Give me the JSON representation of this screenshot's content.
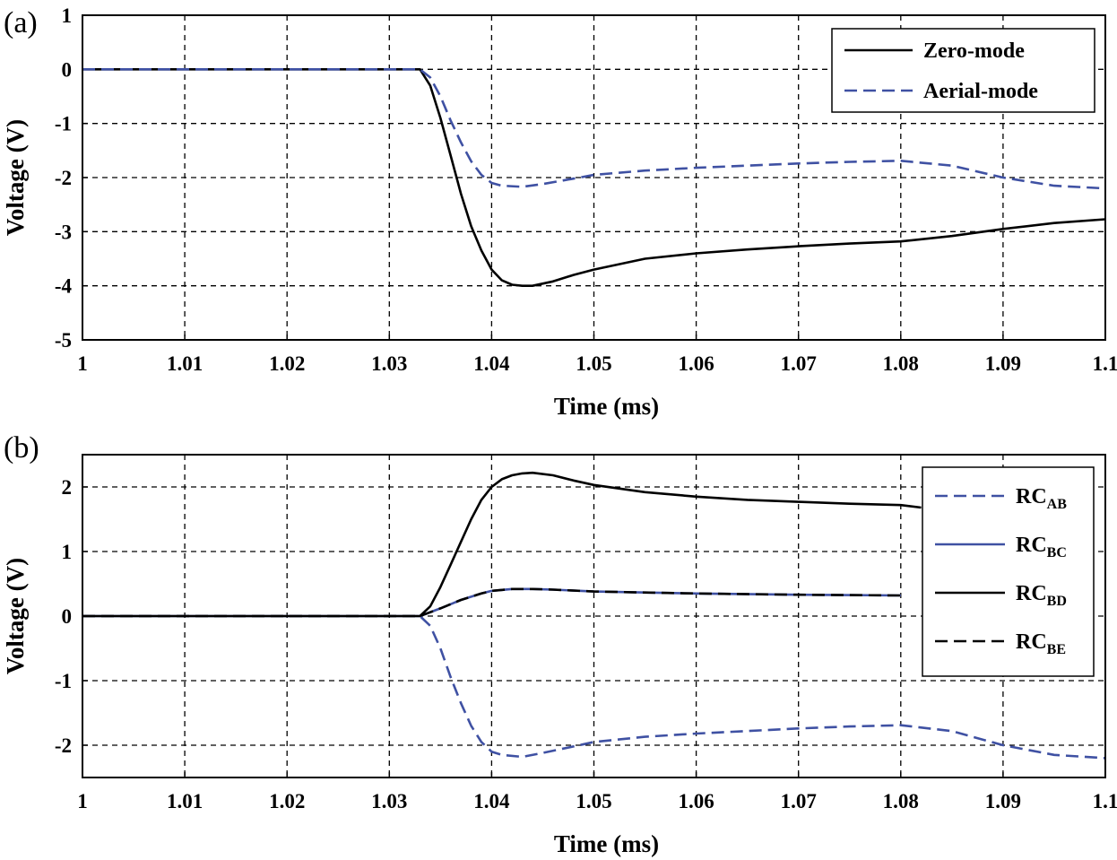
{
  "chart_data": [
    {
      "panel": "(a)",
      "type": "line",
      "xlabel": "Time (ms)",
      "ylabel": "Voltage (V)",
      "xlim": [
        1,
        1.1
      ],
      "ylim": [
        -5,
        1
      ],
      "xticks": [
        "1",
        "1.01",
        "1.02",
        "1.03",
        "1.04",
        "1.05",
        "1.06",
        "1.07",
        "1.08",
        "1.09",
        "1.1"
      ],
      "yticks": [
        "1",
        "0",
        "-1",
        "-2",
        "-3",
        "-4",
        "-5"
      ],
      "grid": true,
      "legend_position": "top-right",
      "series": [
        {
          "name": "Zero-mode",
          "color": "#000000",
          "dash": "solid",
          "x": [
            1.0,
            1.033,
            1.034,
            1.035,
            1.036,
            1.037,
            1.038,
            1.039,
            1.04,
            1.041,
            1.042,
            1.043,
            1.044,
            1.046,
            1.048,
            1.05,
            1.055,
            1.06,
            1.065,
            1.07,
            1.075,
            1.08,
            1.085,
            1.09,
            1.095,
            1.1
          ],
          "y": [
            0,
            0,
            -0.3,
            -0.9,
            -1.6,
            -2.3,
            -2.9,
            -3.35,
            -3.7,
            -3.9,
            -3.98,
            -4.0,
            -4.0,
            -3.92,
            -3.8,
            -3.7,
            -3.5,
            -3.4,
            -3.33,
            -3.27,
            -3.22,
            -3.18,
            -3.08,
            -2.95,
            -2.84,
            -2.77
          ]
        },
        {
          "name": "Aerial-mode",
          "color": "#3F51A3",
          "dash": "dashed",
          "x": [
            1.0,
            1.033,
            1.034,
            1.035,
            1.036,
            1.037,
            1.038,
            1.039,
            1.04,
            1.041,
            1.043,
            1.045,
            1.048,
            1.05,
            1.055,
            1.06,
            1.065,
            1.07,
            1.075,
            1.08,
            1.085,
            1.09,
            1.095,
            1.1
          ],
          "y": [
            0,
            0,
            -0.15,
            -0.5,
            -0.95,
            -1.35,
            -1.7,
            -1.95,
            -2.1,
            -2.15,
            -2.17,
            -2.12,
            -2.02,
            -1.95,
            -1.87,
            -1.82,
            -1.78,
            -1.74,
            -1.71,
            -1.69,
            -1.78,
            -2.0,
            -2.15,
            -2.2
          ]
        }
      ]
    },
    {
      "panel": "(b)",
      "type": "line",
      "xlabel": "Time (ms)",
      "ylabel": "Voltage (V)",
      "xlim": [
        1,
        1.1
      ],
      "ylim": [
        -2.5,
        2.5
      ],
      "xticks": [
        "1",
        "1.01",
        "1.02",
        "1.03",
        "1.04",
        "1.05",
        "1.06",
        "1.07",
        "1.08",
        "1.09",
        "1.1"
      ],
      "yticks": [
        "2",
        "1",
        "0",
        "-1",
        "-2"
      ],
      "grid": true,
      "legend_position": "right",
      "series": [
        {
          "name": "RC_AB",
          "legend_main": "RC",
          "legend_sub": "AB",
          "color": "#3F51A3",
          "dash": "dashed",
          "x": [
            1.0,
            1.033,
            1.034,
            1.035,
            1.036,
            1.037,
            1.038,
            1.039,
            1.04,
            1.041,
            1.043,
            1.045,
            1.048,
            1.05,
            1.055,
            1.06,
            1.065,
            1.07,
            1.075,
            1.08,
            1.085,
            1.09,
            1.095,
            1.1
          ],
          "y": [
            0,
            0,
            -0.15,
            -0.5,
            -0.95,
            -1.35,
            -1.7,
            -1.95,
            -2.1,
            -2.15,
            -2.18,
            -2.12,
            -2.02,
            -1.95,
            -1.87,
            -1.82,
            -1.78,
            -1.74,
            -1.71,
            -1.69,
            -1.78,
            -2.0,
            -2.15,
            -2.2
          ]
        },
        {
          "name": "RC_BC",
          "legend_main": "RC",
          "legend_sub": "BC",
          "color": "#3F51A3",
          "dash": "solid",
          "x": [
            1.0,
            1.033,
            1.035,
            1.037,
            1.039,
            1.04,
            1.042,
            1.044,
            1.046,
            1.05,
            1.06,
            1.07,
            1.08
          ],
          "y": [
            0,
            0,
            0.12,
            0.25,
            0.35,
            0.39,
            0.42,
            0.42,
            0.41,
            0.38,
            0.35,
            0.33,
            0.32
          ]
        },
        {
          "name": "RC_BD",
          "legend_main": "RC",
          "legend_sub": "BD",
          "color": "#000000",
          "dash": "solid",
          "x": [
            1.0,
            1.033,
            1.034,
            1.035,
            1.036,
            1.037,
            1.038,
            1.039,
            1.04,
            1.041,
            1.042,
            1.043,
            1.044,
            1.046,
            1.048,
            1.05,
            1.055,
            1.06,
            1.065,
            1.07,
            1.075,
            1.08,
            1.082
          ],
          "y": [
            0,
            0,
            0.15,
            0.45,
            0.8,
            1.15,
            1.5,
            1.8,
            2.0,
            2.12,
            2.18,
            2.21,
            2.22,
            2.18,
            2.1,
            2.03,
            1.92,
            1.85,
            1.8,
            1.77,
            1.74,
            1.72,
            1.68
          ]
        },
        {
          "name": "RC_BE",
          "legend_main": "RC",
          "legend_sub": "BE",
          "color": "#000000",
          "dash": "dashed",
          "x": [
            1.0,
            1.033,
            1.035,
            1.037,
            1.039,
            1.04,
            1.042,
            1.044,
            1.046,
            1.05,
            1.06,
            1.07,
            1.08
          ],
          "y": [
            0,
            0,
            0.12,
            0.25,
            0.35,
            0.39,
            0.42,
            0.42,
            0.41,
            0.38,
            0.35,
            0.33,
            0.32
          ]
        }
      ]
    }
  ]
}
